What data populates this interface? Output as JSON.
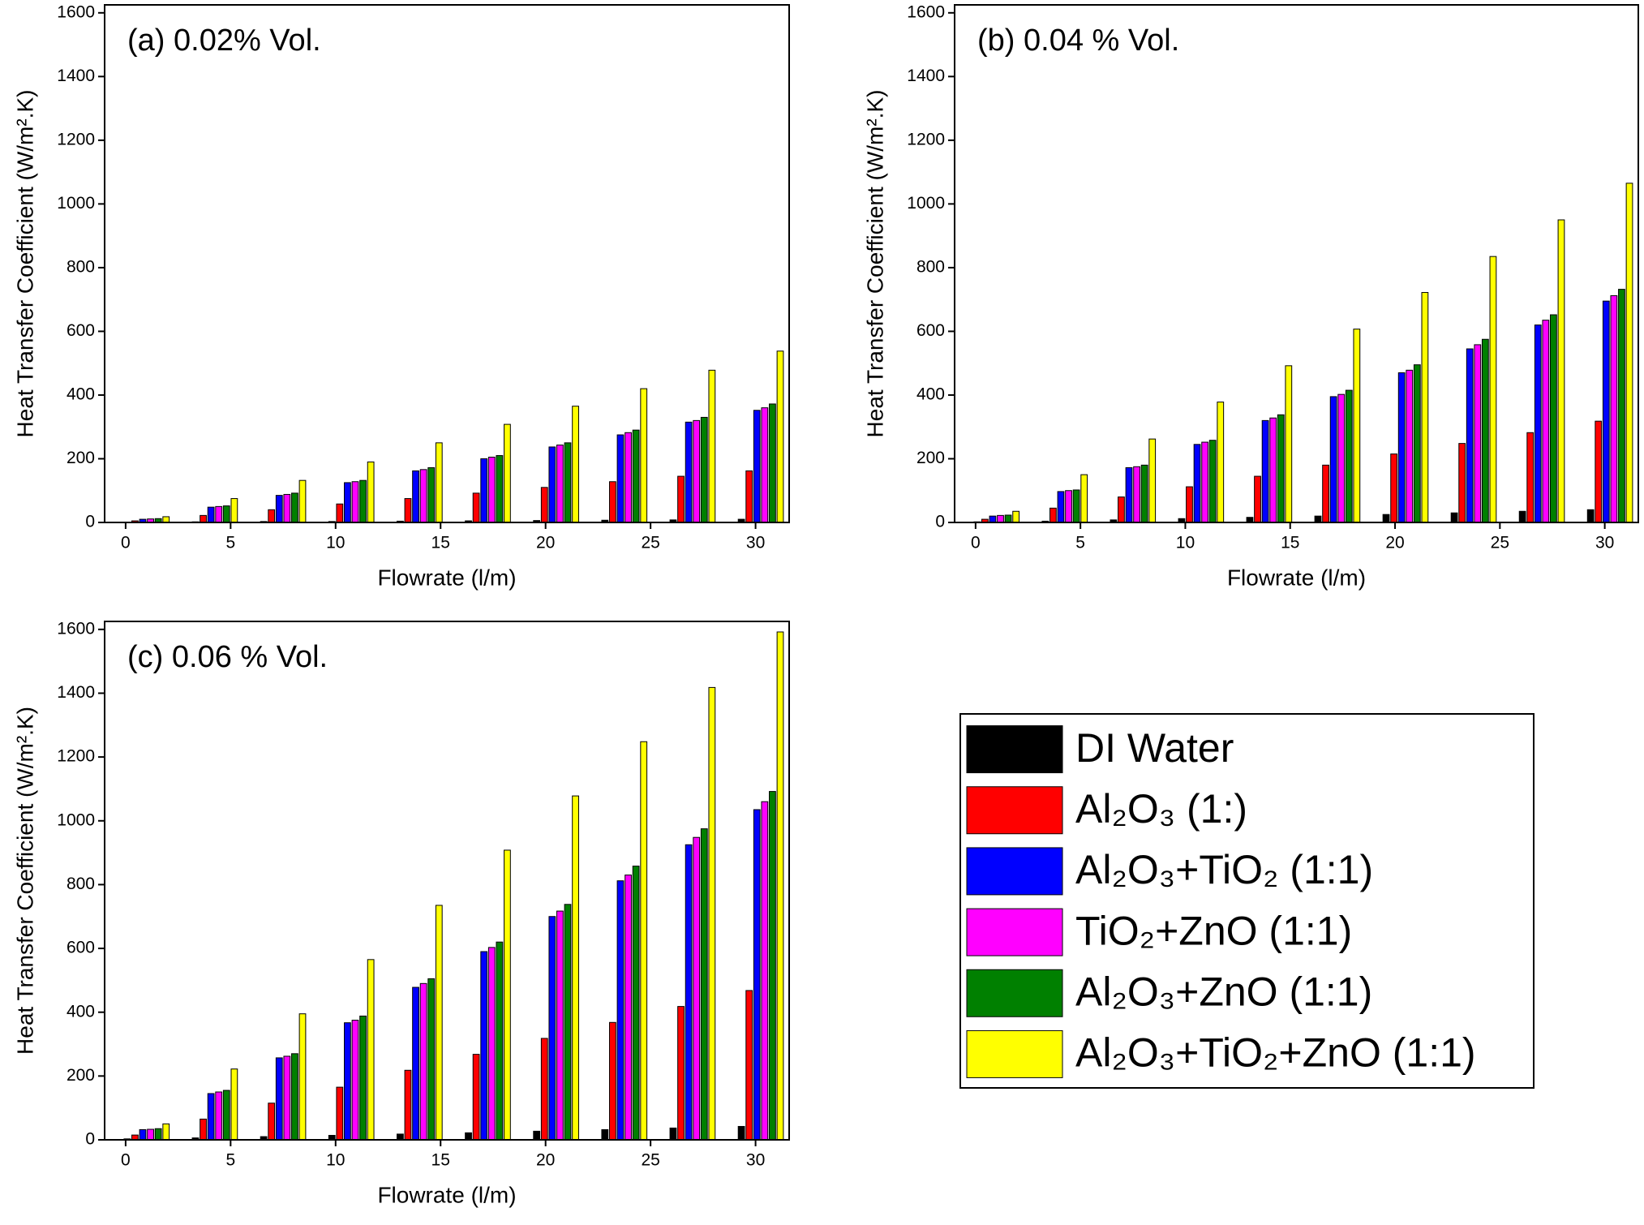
{
  "chart_data": [
    {
      "type": "bar",
      "title": "(a) 0.02% Vol.",
      "xlabel": "Flowrate (l/m)",
      "ylabel": "Heat Transfer Coefficient (W/m².K)",
      "x": [
        1,
        4.25,
        7.5,
        10.75,
        14,
        17.25,
        20.5,
        23.75,
        27,
        30.25
      ],
      "xlim": [
        -1,
        31.6
      ],
      "xticks": [
        0,
        5,
        10,
        15,
        20,
        25,
        30
      ],
      "ylim": [
        0,
        1625
      ],
      "yticks": [
        0,
        200,
        400,
        600,
        800,
        1000,
        1200,
        1400,
        1600
      ],
      "series": [
        {
          "name": "DI Water",
          "color": "#000000",
          "values": [
            1,
            2,
            3,
            3,
            4,
            5,
            6,
            7,
            8,
            10
          ]
        },
        {
          "name": "Al₂O₃  (1:)",
          "color": "#ff0000",
          "values": [
            5,
            22,
            40,
            58,
            75,
            92,
            110,
            128,
            145,
            162
          ]
        },
        {
          "name": "Al₂O₃+TiO₂  (1:1)",
          "color": "#0000ff",
          "values": [
            10,
            48,
            85,
            125,
            162,
            200,
            237,
            275,
            315,
            352
          ]
        },
        {
          "name": "TiO₂+ZnO  (1:1)",
          "color": "#ff00ff",
          "values": [
            11,
            50,
            88,
            128,
            166,
            205,
            243,
            282,
            320,
            360
          ]
        },
        {
          "name": "Al₂O₃+ZnO  (1:1)",
          "color": "#008000",
          "values": [
            12,
            52,
            92,
            132,
            172,
            210,
            250,
            290,
            330,
            372
          ]
        },
        {
          "name": "Al₂O₃+TiO₂+ZnO  (1:1)",
          "color": "#ffff00",
          "values": [
            18,
            75,
            132,
            190,
            250,
            308,
            365,
            420,
            478,
            538
          ]
        }
      ]
    },
    {
      "type": "bar",
      "title": "(b) 0.04 % Vol.",
      "xlabel": "Flowrate (l/m)",
      "ylabel": "Heat Transfer Coefficient (W/m².K)",
      "x": [
        1,
        4.25,
        7.5,
        10.75,
        14,
        17.25,
        20.5,
        23.75,
        27,
        30.25
      ],
      "xlim": [
        -1,
        31.6
      ],
      "xticks": [
        0,
        5,
        10,
        15,
        20,
        25,
        30
      ],
      "ylim": [
        0,
        1625
      ],
      "yticks": [
        0,
        200,
        400,
        600,
        800,
        1000,
        1200,
        1400,
        1600
      ],
      "series": [
        {
          "name": "DI Water",
          "color": "#000000",
          "values": [
            2,
            4,
            8,
            12,
            16,
            20,
            25,
            30,
            35,
            40
          ]
        },
        {
          "name": "Al₂O₃  (1:)",
          "color": "#ff0000",
          "values": [
            10,
            45,
            80,
            112,
            145,
            180,
            215,
            248,
            282,
            318
          ]
        },
        {
          "name": "Al₂O₃+TiO₂  (1:1)",
          "color": "#0000ff",
          "values": [
            20,
            97,
            172,
            245,
            320,
            395,
            470,
            545,
            620,
            695
          ]
        },
        {
          "name": "TiO₂+ZnO  (1:1)",
          "color": "#ff00ff",
          "values": [
            22,
            100,
            175,
            252,
            328,
            402,
            478,
            558,
            635,
            712
          ]
        },
        {
          "name": "Al₂O₃+ZnO  (1:1)",
          "color": "#008000",
          "values": [
            23,
            102,
            180,
            258,
            338,
            415,
            495,
            575,
            652,
            732
          ]
        },
        {
          "name": "Al₂O₃+TiO₂+ZnO  (1:1)",
          "color": "#ffff00",
          "values": [
            35,
            150,
            262,
            378,
            492,
            607,
            722,
            835,
            950,
            1065
          ]
        }
      ]
    },
    {
      "type": "bar",
      "title": "(c) 0.06 % Vol.",
      "xlabel": "Flowrate (l/m)",
      "ylabel": "Heat Transfer Coefficient (W/m².K)",
      "x": [
        1,
        4.25,
        7.5,
        10.75,
        14,
        17.25,
        20.5,
        23.75,
        27,
        30.25
      ],
      "xlim": [
        -1,
        31.6
      ],
      "xticks": [
        0,
        5,
        10,
        15,
        20,
        25,
        30
      ],
      "ylim": [
        0,
        1625
      ],
      "yticks": [
        0,
        200,
        400,
        600,
        800,
        1000,
        1200,
        1400,
        1600
      ],
      "series": [
        {
          "name": "DI Water",
          "color": "#000000",
          "values": [
            3,
            6,
            10,
            14,
            18,
            22,
            27,
            32,
            37,
            42
          ]
        },
        {
          "name": "Al₂O₃  (1:)",
          "color": "#ff0000",
          "values": [
            15,
            65,
            115,
            165,
            218,
            268,
            318,
            368,
            418,
            468
          ]
        },
        {
          "name": "Al₂O₃+TiO₂  (1:1)",
          "color": "#0000ff",
          "values": [
            32,
            145,
            257,
            367,
            478,
            590,
            700,
            812,
            925,
            1035
          ]
        },
        {
          "name": "TiO₂+ZnO  (1:1)",
          "color": "#ff00ff",
          "values": [
            33,
            150,
            262,
            375,
            490,
            603,
            717,
            830,
            948,
            1060
          ]
        },
        {
          "name": "Al₂O₃+ZnO  (1:1)",
          "color": "#008000",
          "values": [
            35,
            155,
            270,
            388,
            505,
            620,
            738,
            858,
            975,
            1092
          ]
        },
        {
          "name": "Al₂O₃+TiO₂+ZnO  (1:1)",
          "color": "#ffff00",
          "values": [
            50,
            222,
            395,
            565,
            735,
            908,
            1078,
            1248,
            1418,
            1592
          ]
        }
      ]
    }
  ]
}
